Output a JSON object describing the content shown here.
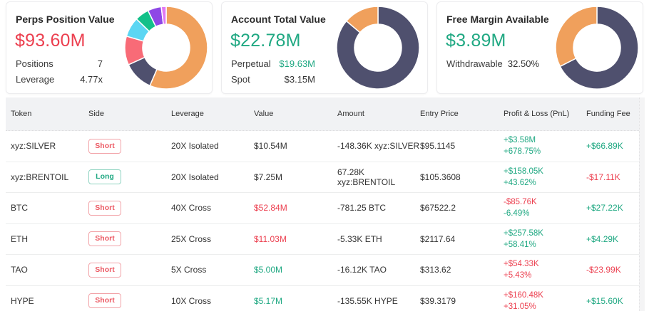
{
  "colors": {
    "green": "#1fa882",
    "red": "#ec3f4f",
    "orange": "#f0a05c",
    "navy": "#4f506e",
    "coral": "#f86b77",
    "cyan": "#5bd6f3",
    "teal": "#13c08a",
    "purple": "#8e48e6",
    "pink": "#e079f2"
  },
  "cards": {
    "perps": {
      "title": "Perps Position Value",
      "value": "$93.60M",
      "rows": [
        {
          "label": "Positions",
          "value": "7"
        },
        {
          "label": "Leverage",
          "value": "4.77x"
        }
      ],
      "donut": [
        {
          "name": "BTC",
          "value": 52.84,
          "color": "#f0a05c"
        },
        {
          "name": "ETH",
          "value": 11.03,
          "color": "#4f506e"
        },
        {
          "name": "xyz:SILVER",
          "value": 10.54,
          "color": "#f86b77"
        },
        {
          "name": "xyz:BRENTOIL",
          "value": 7.25,
          "color": "#5bd6f3"
        },
        {
          "name": "HYPE",
          "value": 5.17,
          "color": "#13c08a"
        },
        {
          "name": "TAO",
          "value": 5.0,
          "color": "#8e48e6"
        },
        {
          "name": "Other",
          "value": 1.77,
          "color": "#e079f2"
        }
      ]
    },
    "account": {
      "title": "Account Total Value",
      "value": "$22.78M",
      "rows": [
        {
          "label": "Perpetual",
          "value": "$19.63M"
        },
        {
          "label": "Spot",
          "value": "$3.15M"
        }
      ],
      "donut": [
        {
          "name": "Perpetual",
          "value": 19.63,
          "color": "#4f506e"
        },
        {
          "name": "Spot",
          "value": 3.15,
          "color": "#f0a05c"
        }
      ]
    },
    "margin": {
      "title": "Free Margin Available",
      "value": "$3.89M",
      "rows": [
        {
          "label": "Withdrawable",
          "value": "32.50%"
        }
      ],
      "donut": [
        {
          "name": "Used",
          "value": 67.5,
          "color": "#4f506e"
        },
        {
          "name": "Withdrawable",
          "value": 32.5,
          "color": "#f0a05c"
        }
      ]
    }
  },
  "table": {
    "headers": [
      "Token",
      "Side",
      "Leverage",
      "Value",
      "Amount",
      "Entry Price",
      "Profit & Loss (PnL)",
      "Funding Fee"
    ],
    "rows": [
      {
        "token": "xyz:SILVER",
        "side": "Short",
        "leverage": "20X Isolated",
        "value": "$10.54M",
        "value_tone": "neutral",
        "amount": "-148.36K xyz:SILVER",
        "entry": "$95.1145",
        "pnl": "+$3.58M",
        "pnl_tone": "pos",
        "pnl_pct": "+678.75%",
        "pnl_pct_tone": "pos",
        "funding": "+$66.89K",
        "funding_tone": "pos"
      },
      {
        "token": "xyz:BRENTOIL",
        "side": "Long",
        "leverage": "20X Isolated",
        "value": "$7.25M",
        "value_tone": "neutral",
        "amount": "67.28K xyz:BRENTOIL",
        "entry": "$105.3608",
        "pnl": "+$158.05K",
        "pnl_tone": "pos",
        "pnl_pct": "+43.62%",
        "pnl_pct_tone": "pos",
        "funding": "-$17.11K",
        "funding_tone": "neg"
      },
      {
        "token": "BTC",
        "side": "Short",
        "leverage": "40X Cross",
        "value": "$52.84M",
        "value_tone": "neg",
        "amount": "-781.25 BTC",
        "entry": "$67522.2",
        "pnl": "-$85.76K",
        "pnl_tone": "neg",
        "pnl_pct": "-6.49%",
        "pnl_pct_tone": "pos",
        "funding": "+$27.22K",
        "funding_tone": "pos"
      },
      {
        "token": "ETH",
        "side": "Short",
        "leverage": "25X Cross",
        "value": "$11.03M",
        "value_tone": "neg",
        "amount": "-5.33K ETH",
        "entry": "$2117.64",
        "pnl": "+$257.58K",
        "pnl_tone": "pos",
        "pnl_pct": "+58.41%",
        "pnl_pct_tone": "pos",
        "funding": "+$4.29K",
        "funding_tone": "pos"
      },
      {
        "token": "TAO",
        "side": "Short",
        "leverage": "5X Cross",
        "value": "$5.00M",
        "value_tone": "pos",
        "amount": "-16.12K TAO",
        "entry": "$313.62",
        "pnl": "+$54.33K",
        "pnl_tone": "neg",
        "pnl_pct": "+5.43%",
        "pnl_pct_tone": "neg",
        "funding": "-$23.99K",
        "funding_tone": "neg"
      },
      {
        "token": "HYPE",
        "side": "Short",
        "leverage": "10X Cross",
        "value": "$5.17M",
        "value_tone": "pos",
        "amount": "-135.55K HYPE",
        "entry": "$39.3179",
        "pnl": "+$160.48K",
        "pnl_tone": "neg",
        "pnl_pct": "+31.05%",
        "pnl_pct_tone": "neg",
        "funding": "+$15.60K",
        "funding_tone": "pos"
      }
    ]
  }
}
